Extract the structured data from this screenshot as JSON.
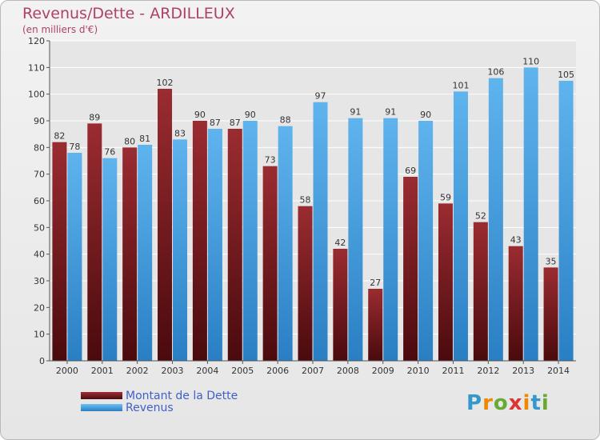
{
  "header": {
    "title": "Revenus/Dette - ARDILLEUX",
    "subtitle": "(en milliers d'€)"
  },
  "colors": {
    "dette": "#7a1f24",
    "revenus": "#3d9be0",
    "axis": "#555555",
    "grid": "#ffffff"
  },
  "chart_data": {
    "type": "bar",
    "title": "Revenus/Dette - ARDILLEUX",
    "ylabel": "(en milliers d'€)",
    "categories": [
      "2000",
      "2001",
      "2002",
      "2003",
      "2004",
      "2005",
      "2006",
      "2007",
      "2008",
      "2009",
      "2010",
      "2011",
      "2012",
      "2013",
      "2014"
    ],
    "series": [
      {
        "name": "Montant de la Dette",
        "values": [
          82,
          89,
          80,
          102,
          90,
          87,
          73,
          58,
          42,
          27,
          69,
          59,
          52,
          43,
          35
        ]
      },
      {
        "name": "Revenus",
        "values": [
          78,
          76,
          81,
          83,
          87,
          90,
          88,
          97,
          91,
          91,
          90,
          101,
          106,
          110,
          105
        ]
      }
    ],
    "ylim": [
      0,
      120
    ],
    "yticks": [
      0,
      10,
      20,
      30,
      40,
      50,
      60,
      70,
      80,
      90,
      100,
      110,
      120
    ],
    "grid": true,
    "legend": "bottom-left"
  },
  "legend": {
    "items": [
      {
        "label": "Montant de la Dette"
      },
      {
        "label": "Revenus"
      }
    ]
  },
  "logo": {
    "text": "Proxiti",
    "letter_colors": [
      "#3399cc",
      "#ee8800",
      "#66aa33",
      "#dd3333",
      "#ee8800",
      "#3399cc",
      "#66aa33"
    ]
  }
}
